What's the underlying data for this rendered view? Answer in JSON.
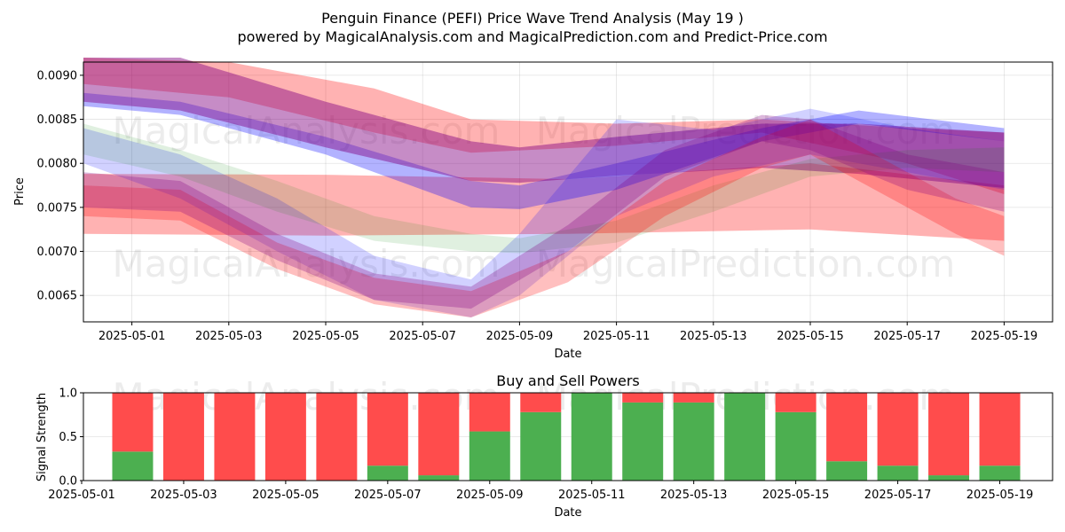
{
  "chart_data": [
    {
      "type": "area",
      "title": "Penguin Finance (PEFI) Price Wave Trend Analysis (May 19 )",
      "subtitle": "powered by MagicalAnalysis.com and MagicalPrediction.com and Predict-Price.com",
      "xlabel": "Date",
      "ylabel": "Price",
      "xlim": [
        "2025-04-30",
        "2025-05-20"
      ],
      "ylim": [
        0.0062,
        0.00915
      ],
      "x_ticks": [
        "2025-05-01",
        "2025-05-03",
        "2025-05-05",
        "2025-05-07",
        "2025-05-09",
        "2025-05-11",
        "2025-05-13",
        "2025-05-15",
        "2025-05-17",
        "2025-05-19"
      ],
      "y_ticks": [
        0.0065,
        0.007,
        0.0075,
        0.008,
        0.0085,
        0.009
      ],
      "y_tick_labels": [
        "0.0065",
        "0.0070",
        "0.0075",
        "0.0080",
        "0.0085",
        "0.0090"
      ],
      "grid": true,
      "watermarks": [
        "MagicalAnalysis.com",
        "MagicalPrediction.com",
        "MagicalAnalysis.com",
        "MagicalPrediction.com"
      ],
      "series": [
        {
          "color": "#ff0000",
          "opacity": 0.3,
          "x": [
            "2025-04-30",
            "2025-05-05",
            "2025-05-10",
            "2025-05-15",
            "2025-05-19"
          ],
          "upper": [
            0.00788,
            0.00787,
            0.00782,
            0.008,
            0.00775
          ],
          "lower": [
            0.0072,
            0.00718,
            0.0072,
            0.00725,
            0.00712
          ]
        },
        {
          "color": "#ff0000",
          "opacity": 0.3,
          "x": [
            "2025-04-30",
            "2025-05-03",
            "2025-05-06",
            "2025-05-08",
            "2025-05-11",
            "2025-05-14",
            "2025-05-17",
            "2025-05-19"
          ],
          "upper": [
            0.0092,
            0.00915,
            0.00885,
            0.0085,
            0.00845,
            0.0085,
            0.0084,
            0.00835
          ],
          "lower": [
            0.0089,
            0.00875,
            0.00835,
            0.00812,
            0.0082,
            0.00835,
            0.008,
            0.00765
          ]
        },
        {
          "color": "#0000ff",
          "opacity": 0.3,
          "x": [
            "2025-04-30",
            "2025-05-02",
            "2025-05-05",
            "2025-05-08",
            "2025-05-09",
            "2025-05-11",
            "2025-05-14",
            "2025-05-16",
            "2025-05-19"
          ],
          "upper": [
            0.0088,
            0.0087,
            0.0083,
            0.0078,
            0.00775,
            0.008,
            0.0084,
            0.0086,
            0.0084
          ],
          "lower": [
            0.00865,
            0.00855,
            0.0081,
            0.0075,
            0.00748,
            0.0077,
            0.00825,
            0.00845,
            0.00825
          ]
        },
        {
          "color": "#800080",
          "opacity": 0.45,
          "x": [
            "2025-04-30",
            "2025-05-02",
            "2025-05-05",
            "2025-05-08",
            "2025-05-09",
            "2025-05-11",
            "2025-05-14",
            "2025-05-16",
            "2025-05-19"
          ],
          "upper": [
            0.0092,
            0.0092,
            0.0087,
            0.00825,
            0.00818,
            0.0083,
            0.00845,
            0.00845,
            0.00835
          ],
          "lower": [
            0.0087,
            0.0086,
            0.00818,
            0.0078,
            0.00778,
            0.00786,
            0.00795,
            0.00788,
            0.00772
          ]
        },
        {
          "color": "#0000ff",
          "opacity": 0.18,
          "x": [
            "2025-04-30",
            "2025-05-02",
            "2025-05-04",
            "2025-05-06",
            "2025-05-08",
            "2025-05-09",
            "2025-05-11",
            "2025-05-13",
            "2025-05-15",
            "2025-05-17",
            "2025-05-19"
          ],
          "upper": [
            0.0084,
            0.0081,
            0.0076,
            0.00695,
            0.00668,
            0.0072,
            0.0085,
            0.00838,
            0.00862,
            0.0084,
            0.00825
          ],
          "lower": [
            0.008,
            0.0076,
            0.007,
            0.00645,
            0.00625,
            0.0065,
            0.0074,
            0.00785,
            0.0081,
            0.0079,
            0.0077
          ]
        },
        {
          "color": "#008000",
          "opacity": 0.12,
          "x": [
            "2025-04-30",
            "2025-05-02",
            "2025-05-04",
            "2025-05-06",
            "2025-05-08",
            "2025-05-09",
            "2025-05-11",
            "2025-05-13",
            "2025-05-15",
            "2025-05-17",
            "2025-05-19"
          ],
          "upper": [
            0.00845,
            0.00815,
            0.0078,
            0.0074,
            0.0072,
            0.00715,
            0.00735,
            0.00775,
            0.00805,
            0.00815,
            0.00818
          ],
          "lower": [
            0.0081,
            0.00785,
            0.00745,
            0.00712,
            0.007,
            0.00698,
            0.0071,
            0.00745,
            0.00785,
            0.00795,
            0.0079
          ]
        },
        {
          "color": "#ff0000",
          "opacity": 0.25,
          "x": [
            "2025-04-30",
            "2025-05-02",
            "2025-05-04",
            "2025-05-06",
            "2025-05-08",
            "2025-05-10",
            "2025-05-12",
            "2025-05-14",
            "2025-05-15",
            "2025-05-16",
            "2025-05-18",
            "2025-05-19"
          ],
          "upper": [
            0.00775,
            0.0077,
            0.0071,
            0.0067,
            0.00655,
            0.007,
            0.0078,
            0.0083,
            0.0085,
            0.0082,
            0.0076,
            0.0074
          ],
          "lower": [
            0.0074,
            0.00735,
            0.0068,
            0.0064,
            0.00625,
            0.00665,
            0.0074,
            0.00795,
            0.0081,
            0.0078,
            0.0072,
            0.00695
          ]
        },
        {
          "color": "#800080",
          "opacity": 0.28,
          "x": [
            "2025-04-30",
            "2025-05-02",
            "2025-05-04",
            "2025-05-06",
            "2025-05-08",
            "2025-05-10",
            "2025-05-12",
            "2025-05-14",
            "2025-05-15",
            "2025-05-17",
            "2025-05-19"
          ],
          "upper": [
            0.0079,
            0.0078,
            0.0072,
            0.00675,
            0.0066,
            0.0073,
            0.00815,
            0.00855,
            0.0085,
            0.0081,
            0.0079
          ],
          "lower": [
            0.0075,
            0.00745,
            0.0069,
            0.00645,
            0.00635,
            0.007,
            0.00785,
            0.00825,
            0.00815,
            0.0077,
            0.00745
          ]
        }
      ]
    },
    {
      "type": "bar",
      "title": "Buy and Sell Powers",
      "xlabel": "Date",
      "ylabel": "Signal Strength",
      "xlim": [
        "2025-05-01",
        "2025-05-20"
      ],
      "ylim": [
        0,
        1.0
      ],
      "x_ticks": [
        "2025-05-01",
        "2025-05-03",
        "2025-05-05",
        "2025-05-07",
        "2025-05-09",
        "2025-05-11",
        "2025-05-13",
        "2025-05-15",
        "2025-05-17",
        "2025-05-19"
      ],
      "y_ticks": [
        0.0,
        0.5,
        1.0
      ],
      "y_tick_labels": [
        "0.0",
        "0.5",
        "1.0"
      ],
      "grid": true,
      "buy_color": "#4caf50",
      "sell_color": "#ff4c4c",
      "categories": [
        "2025-05-02",
        "2025-05-03",
        "2025-05-04",
        "2025-05-05",
        "2025-05-06",
        "2025-05-07",
        "2025-05-08",
        "2025-05-09",
        "2025-05-10",
        "2025-05-11",
        "2025-05-12",
        "2025-05-13",
        "2025-05-14",
        "2025-05-15",
        "2025-05-16",
        "2025-05-17",
        "2025-05-18",
        "2025-05-19"
      ],
      "series": [
        {
          "values": [
            0.33,
            0.0,
            0.0,
            0.0,
            0.0,
            0.17,
            0.06,
            0.56,
            0.78,
            1.0,
            0.89,
            0.89,
            1.0,
            0.78,
            0.22,
            0.17,
            0.06,
            0.17
          ]
        },
        {
          "values": [
            0.67,
            1.0,
            1.0,
            1.0,
            1.0,
            0.83,
            0.94,
            0.44,
            0.22,
            0.0,
            0.11,
            0.11,
            0.0,
            0.22,
            0.78,
            0.83,
            0.94,
            0.83
          ]
        }
      ]
    }
  ]
}
